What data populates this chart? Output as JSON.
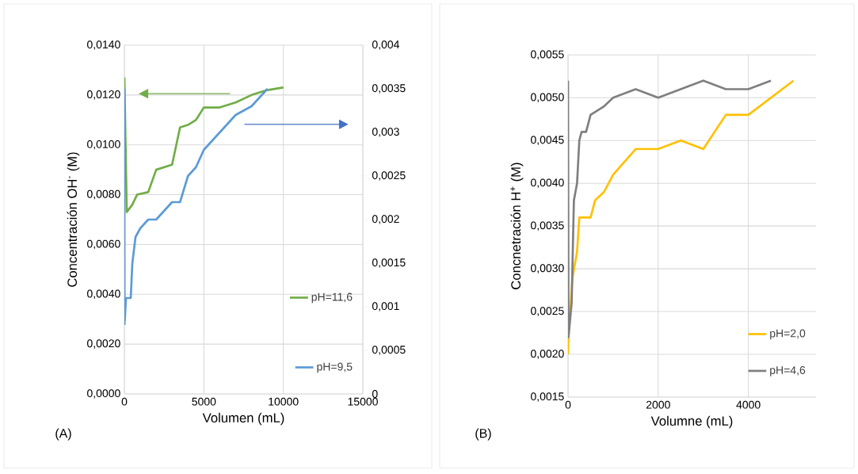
{
  "chart_data": [
    {
      "type": "line",
      "xlabel": "Volumen (mL)",
      "ylabel": "Concentración OH$^{-}$ (M)",
      "annotations": [
        "(A)"
      ],
      "xlim": [
        0,
        15000
      ],
      "xticks": [
        0,
        5000,
        10000,
        15000
      ],
      "ylim": [
        0,
        0.014
      ],
      "yticks": [
        {
          "value": 0,
          "label": "0,0000"
        },
        {
          "value": 0.002,
          "label": "0,0020"
        },
        {
          "value": 0.004,
          "label": "0,0040"
        },
        {
          "value": 0.006,
          "label": "0,0060"
        },
        {
          "value": 0.008,
          "label": "0,0080"
        },
        {
          "value": 0.01,
          "label": "0,0100"
        },
        {
          "value": 0.012,
          "label": "0,0120"
        },
        {
          "value": 0.014,
          "label": "0,0140"
        }
      ],
      "y2lim": [
        0,
        0.004
      ],
      "y2ticks": [
        0,
        {
          "value": 0.0005,
          "label": "0,0005"
        },
        {
          "value": 0.001,
          "label": "0,001"
        },
        {
          "value": 0.0015,
          "label": "0,0015"
        },
        {
          "value": 0.002,
          "label": "0,002"
        },
        {
          "value": 0.0025,
          "label": "0,0025"
        },
        {
          "value": 0.003,
          "label": "0,003"
        },
        {
          "value": 0.0035,
          "label": "0,0035"
        },
        {
          "value": 0.004,
          "label": "0,004"
        }
      ],
      "grid": true,
      "legend": "bottom right",
      "marker": "none",
      "line_style": "solid",
      "series": [
        {
          "name": "pH=11,6",
          "color": "#70ad47",
          "x": [
            0,
            150,
            500,
            800,
            1500,
            2000,
            3000,
            3500,
            4000,
            4500,
            5000,
            6000,
            7000,
            8000,
            9000,
            10000
          ],
          "values": [
            0.0127,
            0.0073,
            0.0076,
            0.008,
            0.0081,
            0.009,
            0.0092,
            0.0107,
            0.0108,
            0.011,
            0.0115,
            0.0115,
            0.0117,
            0.012,
            0.0122,
            0.0123
          ]
        },
        {
          "name": "pH=9,5",
          "color": "#5b9bd5",
          "axis": "y2",
          "x": [
            0,
            10,
            100,
            400,
            500,
            700,
            1000,
            1500,
            2000,
            3000,
            3500,
            4000,
            4500,
            5000,
            6000,
            7000,
            8000,
            9000
          ],
          "values": [
            0.0035,
            0.0008,
            0.0011,
            0.0011,
            0.0015,
            0.0018,
            0.0019,
            0.002,
            0.002,
            0.0022,
            0.0022,
            0.0025,
            0.0026,
            0.0028,
            0.003,
            0.0032,
            0.0033,
            0.0035
          ]
        }
      ]
    },
    {
      "type": "line",
      "xlabel": "Volumne (mL)",
      "ylabel": "Concnetración H$^{+}$ (M)",
      "annotations": [
        "(B)"
      ],
      "xlim": [
        0,
        5500
      ],
      "xticks": [
        0,
        2000,
        4000
      ],
      "ylim": [
        0.0015,
        0.0055
      ],
      "yticks": [
        {
          "value": 0.0015,
          "label": "0,0015"
        },
        {
          "value": 0.002,
          "label": "0,0020"
        },
        {
          "value": 0.0025,
          "label": "0,0025"
        },
        {
          "value": 0.003,
          "label": "0,0030"
        },
        {
          "value": 0.0035,
          "label": "0,0035"
        },
        {
          "value": 0.004,
          "label": "0,0040"
        },
        {
          "value": 0.0045,
          "label": "0,0045"
        },
        {
          "value": 0.005,
          "label": "0,0050"
        },
        {
          "value": 0.0055,
          "label": "0,0055"
        }
      ],
      "grid": true,
      "legend": "bottom right",
      "marker": "none",
      "line_style": "solid",
      "series": [
        {
          "name": "pH=2,0",
          "color": "#ffc000",
          "x": [
            0,
            10,
            100,
            200,
            250,
            500,
            600,
            800,
            1000,
            1500,
            2000,
            2500,
            3000,
            3500,
            4000,
            5000
          ],
          "values": [
            0.002,
            0.0022,
            0.0029,
            0.0032,
            0.0036,
            0.0036,
            0.0038,
            0.0039,
            0.0041,
            0.0044,
            0.0044,
            0.0045,
            0.0044,
            0.0048,
            0.0048,
            0.0052
          ]
        },
        {
          "name": "pH=4,6",
          "color": "#7f7f7f",
          "x": [
            0,
            10,
            80,
            130,
            200,
            250,
            300,
            400,
            500,
            800,
            1000,
            1500,
            2000,
            3000,
            3500,
            4000,
            4500
          ],
          "values": [
            0.0052,
            0.0022,
            0.0026,
            0.0038,
            0.004,
            0.0045,
            0.0046,
            0.0046,
            0.0048,
            0.0049,
            0.005,
            0.0051,
            0.005,
            0.0052,
            0.0051,
            0.0051,
            0.0052
          ]
        }
      ]
    }
  ]
}
